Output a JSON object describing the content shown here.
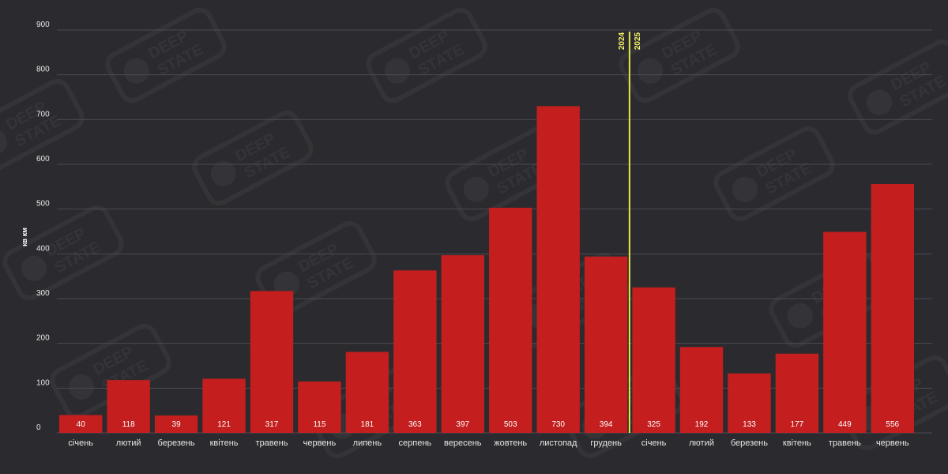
{
  "chart_data": {
    "type": "bar",
    "ylabel": "кв км",
    "ylim": [
      0,
      900
    ],
    "y_ticks": [
      0,
      100,
      200,
      300,
      400,
      500,
      600,
      700,
      800,
      900
    ],
    "grid": true,
    "categories": [
      "січень",
      "лютий",
      "березень",
      "квітень",
      "травень",
      "червень",
      "липень",
      "серпень",
      "вересень",
      "жовтень",
      "листопад",
      "грудень",
      "січень",
      "лютий",
      "березень",
      "квітень",
      "травень",
      "червень"
    ],
    "values": [
      40,
      118,
      39,
      121,
      317,
      115,
      181,
      363,
      397,
      503,
      730,
      394,
      325,
      192,
      133,
      177,
      449,
      556
    ],
    "year_divider": {
      "left_year": "2024",
      "right_year": "2025"
    },
    "colors": {
      "bar": "#c41e1e",
      "divider": "#e8e84a",
      "background": "#2b2b2f",
      "grid": "#4a4a50"
    }
  },
  "watermark": {
    "line1": "DEEP",
    "line2": "STATE"
  }
}
